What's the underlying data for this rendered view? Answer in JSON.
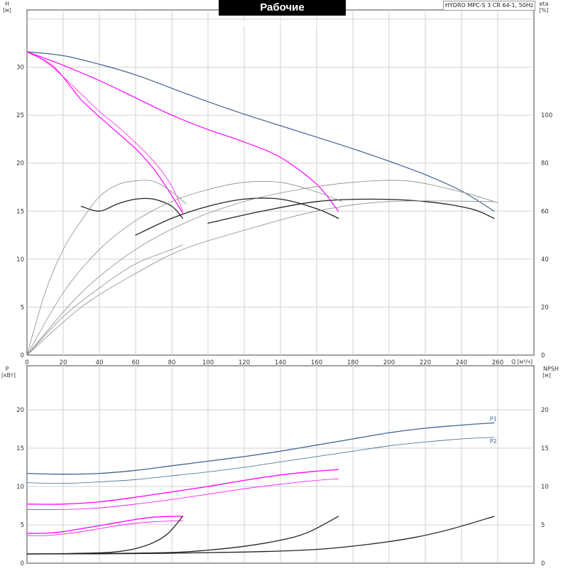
{
  "header": {
    "title": "Рабочие характеристики",
    "model": "HYDRO MPC-S 3 CR 64-1, 50Hz"
  },
  "colors": {
    "grid": "#d0d0d0",
    "axis": "#444444",
    "blue": "#3d6590",
    "magenta": "#ff00ff",
    "black": "#222222",
    "gray": "#8a8a8a",
    "label_blue": "#2f67a8"
  },
  "chart_data": [
    {
      "type": "line",
      "panel": "top",
      "xlabel": "Q [м³/ч]",
      "ylabel_left": "H",
      "ylabel_left_unit": "[м]",
      "ylabel_right": "eta",
      "ylabel_right_unit": "[%]",
      "xlim": [
        0,
        280
      ],
      "ylim": [
        0,
        35
      ],
      "ylim_right": [
        0,
        140
      ],
      "xticks": [
        0,
        20,
        40,
        60,
        80,
        100,
        120,
        140,
        160,
        180,
        200,
        220,
        240,
        260
      ],
      "yticks": [
        0,
        5,
        10,
        15,
        20,
        25,
        30
      ],
      "yticks_right": [
        0,
        20,
        40,
        60,
        80,
        100
      ],
      "grid": true,
      "series": [
        {
          "axis": "left",
          "color": "blue",
          "width": 1.2,
          "points": [
            [
              0,
              31.6
            ],
            [
              20,
              31.2
            ],
            [
              40,
              30.3
            ],
            [
              60,
              29.2
            ],
            [
              80,
              27.8
            ],
            [
              100,
              26.4
            ],
            [
              120,
              25.1
            ],
            [
              140,
              23.9
            ],
            [
              160,
              22.7
            ],
            [
              180,
              21.5
            ],
            [
              200,
              20.2
            ],
            [
              220,
              18.8
            ],
            [
              240,
              17.1
            ],
            [
              258,
              15.0
            ]
          ]
        },
        {
          "axis": "left",
          "color": "magenta",
          "width": 1.2,
          "points": [
            [
              0,
              31.6
            ],
            [
              20,
              30.2
            ],
            [
              40,
              28.6
            ],
            [
              60,
              26.8
            ],
            [
              80,
              25.0
            ],
            [
              100,
              23.5
            ],
            [
              120,
              22.2
            ],
            [
              140,
              20.6
            ],
            [
              160,
              17.8
            ],
            [
              172,
              15.0
            ]
          ]
        },
        {
          "axis": "left",
          "color": "magenta",
          "width": 1.2,
          "points": [
            [
              0,
              31.6
            ],
            [
              15,
              30.0
            ],
            [
              30,
              26.6
            ],
            [
              45,
              24.0
            ],
            [
              60,
              21.5
            ],
            [
              70,
              19.4
            ],
            [
              78,
              17.2
            ],
            [
              86,
              14.8
            ]
          ]
        },
        {
          "axis": "left",
          "color": "magenta",
          "width": 0.7,
          "points": [
            [
              0,
              31.6
            ],
            [
              10,
              30.6
            ],
            [
              20,
              29.0
            ],
            [
              30,
              27.2
            ],
            [
              40,
              25.4
            ],
            [
              55,
              23.0
            ],
            [
              70,
              20.2
            ],
            [
              80,
              17.6
            ],
            [
              86,
              15.0
            ]
          ]
        },
        {
          "axis": "right",
          "color": "black",
          "width": 1.3,
          "points": [
            [
              30,
              62
            ],
            [
              40,
              60
            ],
            [
              50,
              63
            ],
            [
              60,
              65
            ],
            [
              70,
              65
            ],
            [
              80,
              62
            ],
            [
              86,
              57
            ]
          ]
        },
        {
          "axis": "right",
          "color": "black",
          "width": 1.3,
          "points": [
            [
              60,
              50
            ],
            [
              80,
              57
            ],
            [
              100,
              62
            ],
            [
              120,
              65
            ],
            [
              140,
              65
            ],
            [
              160,
              61
            ],
            [
              172,
              57
            ]
          ]
        },
        {
          "axis": "right",
          "color": "black",
          "width": 1.3,
          "points": [
            [
              100,
              55
            ],
            [
              130,
              60
            ],
            [
              160,
              64
            ],
            [
              190,
              65
            ],
            [
              220,
              64
            ],
            [
              245,
              61
            ],
            [
              258,
              57
            ]
          ]
        },
        {
          "axis": "right",
          "color": "gray",
          "width": 0.8,
          "points": [
            [
              0,
              0
            ],
            [
              10,
              26
            ],
            [
              20,
              44
            ],
            [
              30,
              56
            ],
            [
              40,
              66
            ],
            [
              50,
              71
            ],
            [
              60,
              72.6
            ],
            [
              70,
              72.4
            ],
            [
              80,
              68
            ],
            [
              88,
              63
            ]
          ]
        },
        {
          "axis": "right",
          "color": "gray",
          "width": 0.8,
          "points": [
            [
              0,
              0
            ],
            [
              20,
              26
            ],
            [
              40,
              44
            ],
            [
              60,
              56
            ],
            [
              80,
              64
            ],
            [
              100,
              69
            ],
            [
              120,
              72
            ],
            [
              140,
              72
            ],
            [
              160,
              68
            ],
            [
              174,
              64
            ]
          ]
        },
        {
          "axis": "right",
          "color": "gray",
          "width": 0.8,
          "points": [
            [
              0,
              0
            ],
            [
              30,
              26
            ],
            [
              60,
              44
            ],
            [
              90,
              56
            ],
            [
              120,
              64
            ],
            [
              150,
              69
            ],
            [
              180,
              72
            ],
            [
              210,
              72.6
            ],
            [
              240,
              68
            ],
            [
              260,
              63.5
            ]
          ]
        },
        {
          "axis": "right",
          "color": "gray",
          "width": 0.8,
          "points": [
            [
              0,
              0
            ],
            [
              20,
              16
            ],
            [
              40,
              28
            ],
            [
              60,
              38
            ],
            [
              80,
              44
            ],
            [
              86,
              46
            ]
          ]
        },
        {
          "axis": "right",
          "color": "gray",
          "width": 0.8,
          "points": [
            [
              0,
              0
            ],
            [
              30,
              20
            ],
            [
              60,
              34
            ],
            [
              86,
              44
            ],
            [
              120,
              52
            ],
            [
              160,
              60
            ],
            [
              200,
              64
            ],
            [
              258,
              64
            ]
          ]
        }
      ]
    },
    {
      "type": "line",
      "panel": "bottom",
      "ylabel_left": "P",
      "ylabel_left_unit": "[кВт]",
      "ylabel_right": "NPSH",
      "ylabel_right_unit": "[м]",
      "xlim": [
        0,
        280
      ],
      "ylim": [
        0,
        25
      ],
      "yticks": [
        0,
        5,
        10,
        15,
        20
      ],
      "grid": true,
      "series": [
        {
          "name": "P1",
          "color": "blue",
          "width": 1.3,
          "points": [
            [
              0,
              11.7
            ],
            [
              20,
              11.6
            ],
            [
              40,
              11.7
            ],
            [
              60,
              12.1
            ],
            [
              80,
              12.7
            ],
            [
              100,
              13.3
            ],
            [
              120,
              13.9
            ],
            [
              140,
              14.6
            ],
            [
              160,
              15.4
            ],
            [
              180,
              16.2
            ],
            [
              200,
              17.0
            ],
            [
              220,
              17.6
            ],
            [
              240,
              18.0
            ],
            [
              258,
              18.3
            ]
          ]
        },
        {
          "name": "P2",
          "color": "blue",
          "width": 0.8,
          "points": [
            [
              0,
              10.5
            ],
            [
              20,
              10.4
            ],
            [
              40,
              10.6
            ],
            [
              60,
              10.9
            ],
            [
              80,
              11.4
            ],
            [
              100,
              11.9
            ],
            [
              120,
              12.5
            ],
            [
              140,
              13.2
            ],
            [
              160,
              13.9
            ],
            [
              180,
              14.6
            ],
            [
              200,
              15.3
            ],
            [
              220,
              15.8
            ],
            [
              240,
              16.2
            ],
            [
              258,
              16.4
            ]
          ]
        },
        {
          "color": "magenta",
          "width": 1.3,
          "points": [
            [
              0,
              7.7
            ],
            [
              20,
              7.7
            ],
            [
              40,
              8.0
            ],
            [
              60,
              8.6
            ],
            [
              80,
              9.3
            ],
            [
              100,
              10.0
            ],
            [
              120,
              10.8
            ],
            [
              140,
              11.5
            ],
            [
              160,
              12.0
            ],
            [
              172,
              12.2
            ]
          ]
        },
        {
          "color": "magenta",
          "width": 0.8,
          "points": [
            [
              0,
              7.0
            ],
            [
              20,
              7.0
            ],
            [
              40,
              7.2
            ],
            [
              60,
              7.7
            ],
            [
              80,
              8.3
            ],
            [
              100,
              9.0
            ],
            [
              120,
              9.7
            ],
            [
              140,
              10.3
            ],
            [
              160,
              10.8
            ],
            [
              172,
              11.0
            ]
          ]
        },
        {
          "color": "magenta",
          "width": 1.3,
          "points": [
            [
              0,
              3.9
            ],
            [
              10,
              3.9
            ],
            [
              20,
              4.1
            ],
            [
              30,
              4.5
            ],
            [
              40,
              4.9
            ],
            [
              50,
              5.3
            ],
            [
              60,
              5.7
            ],
            [
              70,
              6.0
            ],
            [
              80,
              6.1
            ],
            [
              86,
              6.1
            ]
          ]
        },
        {
          "color": "magenta",
          "width": 0.8,
          "points": [
            [
              0,
              3.6
            ],
            [
              10,
              3.6
            ],
            [
              20,
              3.8
            ],
            [
              30,
              4.1
            ],
            [
              40,
              4.5
            ],
            [
              50,
              4.9
            ],
            [
              60,
              5.2
            ],
            [
              70,
              5.4
            ],
            [
              80,
              5.5
            ],
            [
              86,
              5.5
            ]
          ]
        },
        {
          "color": "black",
          "width": 1.3,
          "points": [
            [
              0,
              1.2
            ],
            [
              20,
              1.25
            ],
            [
              40,
              1.35
            ],
            [
              50,
              1.5
            ],
            [
              60,
              1.9
            ],
            [
              70,
              2.7
            ],
            [
              78,
              3.9
            ],
            [
              86,
              6.1
            ]
          ]
        },
        {
          "color": "black",
          "width": 1.3,
          "points": [
            [
              0,
              1.2
            ],
            [
              40,
              1.25
            ],
            [
              80,
              1.4
            ],
            [
              100,
              1.7
            ],
            [
              120,
              2.2
            ],
            [
              140,
              3.0
            ],
            [
              155,
              4.0
            ],
            [
              172,
              6.1
            ]
          ]
        },
        {
          "color": "black",
          "width": 1.3,
          "points": [
            [
              0,
              1.2
            ],
            [
              60,
              1.25
            ],
            [
              120,
              1.45
            ],
            [
              160,
              1.8
            ],
            [
              190,
              2.5
            ],
            [
              215,
              3.4
            ],
            [
              235,
              4.5
            ],
            [
              258,
              6.1
            ]
          ]
        }
      ]
    }
  ]
}
